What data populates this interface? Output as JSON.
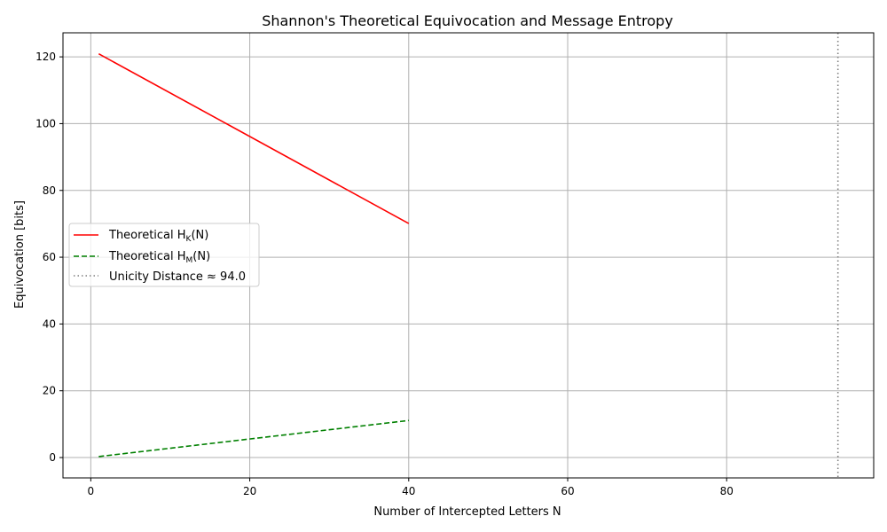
{
  "chart_data": {
    "type": "line",
    "title": "Shannon's Theoretical Equivocation and Message Entropy",
    "xlabel": "Number of Intercepted Letters N",
    "ylabel": "Equivocation [bits]",
    "xlim": [
      -3.5,
      98.5
    ],
    "ylim": [
      -6.1,
      127.2
    ],
    "xticks": [
      0,
      20,
      40,
      60,
      80
    ],
    "yticks": [
      0,
      20,
      40,
      60,
      80,
      100,
      120
    ],
    "grid": true,
    "legend_position": "center-left",
    "series": [
      {
        "name": "Theoretical H_K(N)",
        "legend_label": "Theoretical H",
        "legend_sub": "K",
        "legend_arg": "(N)",
        "style": "solid",
        "color": "#ff0000",
        "x": [
          1,
          40
        ],
        "y": [
          120.9,
          70.1
        ]
      },
      {
        "name": "Theoretical H_M(N)",
        "legend_label": "Theoretical H",
        "legend_sub": "M",
        "legend_arg": "(N)",
        "style": "dashed",
        "color": "#008000",
        "x": [
          1,
          40
        ],
        "y": [
          0.3,
          11.1
        ]
      }
    ],
    "vlines": [
      {
        "name": "Unicity Distance ≈ 94.0",
        "x": 94.0,
        "style": "dotted",
        "color": "#808080"
      }
    ]
  }
}
